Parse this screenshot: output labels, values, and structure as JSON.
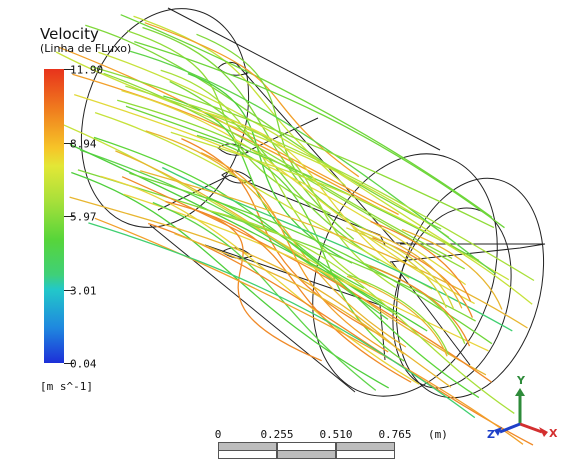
{
  "legend": {
    "title": "Velocity",
    "subtitle": "(Linha de FLuxo)",
    "units": "[m s^-1]",
    "ticks": [
      "11.90",
      "8.94",
      "5.97",
      "3.01",
      "0.04"
    ]
  },
  "scale_bar": {
    "ticks": [
      "0",
      "0.255",
      "0.510",
      "0.765"
    ],
    "unit": "(m)"
  },
  "triad": {
    "x_label": "X",
    "y_label": "Y",
    "z_label": "Z",
    "colors": {
      "x": "#d32f2f",
      "y": "#2e8b3a",
      "z": "#1e40c8"
    }
  },
  "colors": {
    "background": "#ffffff",
    "geometry_outline": "#222222",
    "streamline_dominant": "#6ed63a"
  }
}
